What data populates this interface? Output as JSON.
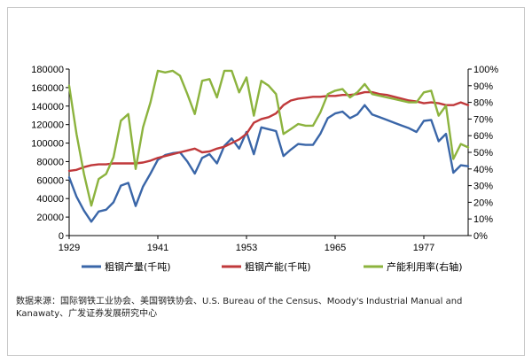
{
  "chart_data": {
    "type": "line",
    "x_ticks": [
      "1929",
      "1941",
      "1953",
      "1965",
      "1977"
    ],
    "y_left_ticks": [
      "0",
      "20000",
      "40000",
      "60000",
      "80000",
      "100000",
      "120000",
      "140000",
      "160000",
      "180000"
    ],
    "y_right_ticks": [
      "0%",
      "10%",
      "20%",
      "30%",
      "40%",
      "50%",
      "60%",
      "70%",
      "80%",
      "90%",
      "100%"
    ],
    "ylim_left": [
      0,
      180000
    ],
    "ylim_right": [
      0,
      100
    ],
    "xlim": [
      1929,
      1983
    ],
    "grid": false,
    "legend_position": "bottom",
    "x": [
      1929,
      1930,
      1931,
      1932,
      1933,
      1934,
      1935,
      1936,
      1937,
      1938,
      1939,
      1940,
      1941,
      1942,
      1943,
      1944,
      1945,
      1946,
      1947,
      1948,
      1949,
      1950,
      1951,
      1952,
      1953,
      1954,
      1955,
      1956,
      1957,
      1958,
      1959,
      1960,
      1961,
      1962,
      1963,
      1964,
      1965,
      1966,
      1967,
      1968,
      1969,
      1970,
      1971,
      1972,
      1973,
      1974,
      1975,
      1976,
      1977,
      1978,
      1979,
      1980,
      1981,
      1982,
      1983
    ],
    "series": [
      {
        "name": "粗钢产量(千吨)",
        "axis": "left",
        "color": "#3a66a8",
        "values": [
          63000,
          42000,
          27000,
          15000,
          26000,
          28000,
          36000,
          54000,
          57000,
          32000,
          53000,
          67000,
          82000,
          87000,
          89000,
          90000,
          80000,
          67000,
          84000,
          88000,
          78000,
          97000,
          105000,
          94000,
          112000,
          88000,
          117000,
          115000,
          113000,
          86000,
          93000,
          99000,
          98000,
          98000,
          110000,
          127000,
          132000,
          134000,
          127000,
          131000,
          141000,
          131000,
          128000,
          125000,
          122000,
          119000,
          116000,
          112000,
          124000,
          125000,
          102000,
          110000,
          68000,
          76000,
          75000
        ]
      },
      {
        "name": "粗钢产能(千吨)",
        "axis": "left",
        "color": "#c0393b",
        "values": [
          70000,
          71000,
          74000,
          76000,
          77000,
          77000,
          78000,
          78000,
          78000,
          78000,
          79000,
          81000,
          84000,
          86000,
          88000,
          90000,
          92000,
          94000,
          90000,
          91000,
          94000,
          96000,
          100000,
          104000,
          110000,
          122000,
          126000,
          128000,
          132000,
          141000,
          146000,
          148000,
          149000,
          150000,
          150000,
          151000,
          151000,
          152000,
          152000,
          153000,
          155000,
          155000,
          153000,
          152000,
          150000,
          148000,
          146000,
          145000,
          143000,
          144000,
          143000,
          141000,
          141000,
          144000,
          141000
        ]
      },
      {
        "name": "产能利用率(右轴)",
        "axis": "right",
        "color": "#8cb33e",
        "values": [
          90,
          61,
          37,
          18,
          34,
          37,
          47,
          69,
          73,
          40,
          65,
          80,
          99,
          98,
          99,
          96,
          85,
          73,
          93,
          94,
          83,
          99,
          99,
          86,
          95,
          72,
          93,
          90,
          85,
          61,
          64,
          67,
          66,
          66,
          74,
          85,
          87,
          88,
          83,
          86,
          91,
          85,
          84,
          83,
          82,
          81,
          80,
          80,
          86,
          87,
          72,
          78,
          46,
          55,
          53
        ]
      }
    ]
  },
  "legend": [
    {
      "label": "粗钢产量(千吨)",
      "color": "#3a66a8"
    },
    {
      "label": "粗钢产能(千吨)",
      "color": "#c0393b"
    },
    {
      "label": "产能利用率(右轴)",
      "color": "#8cb33e"
    }
  ],
  "source": {
    "label": "数据来源：",
    "text": "国际钢铁工业协会、美国钢铁协会、U.S. Bureau of the Census、Moody's Industrial Manual and Kanawaty、广发证券发展研究中心"
  }
}
